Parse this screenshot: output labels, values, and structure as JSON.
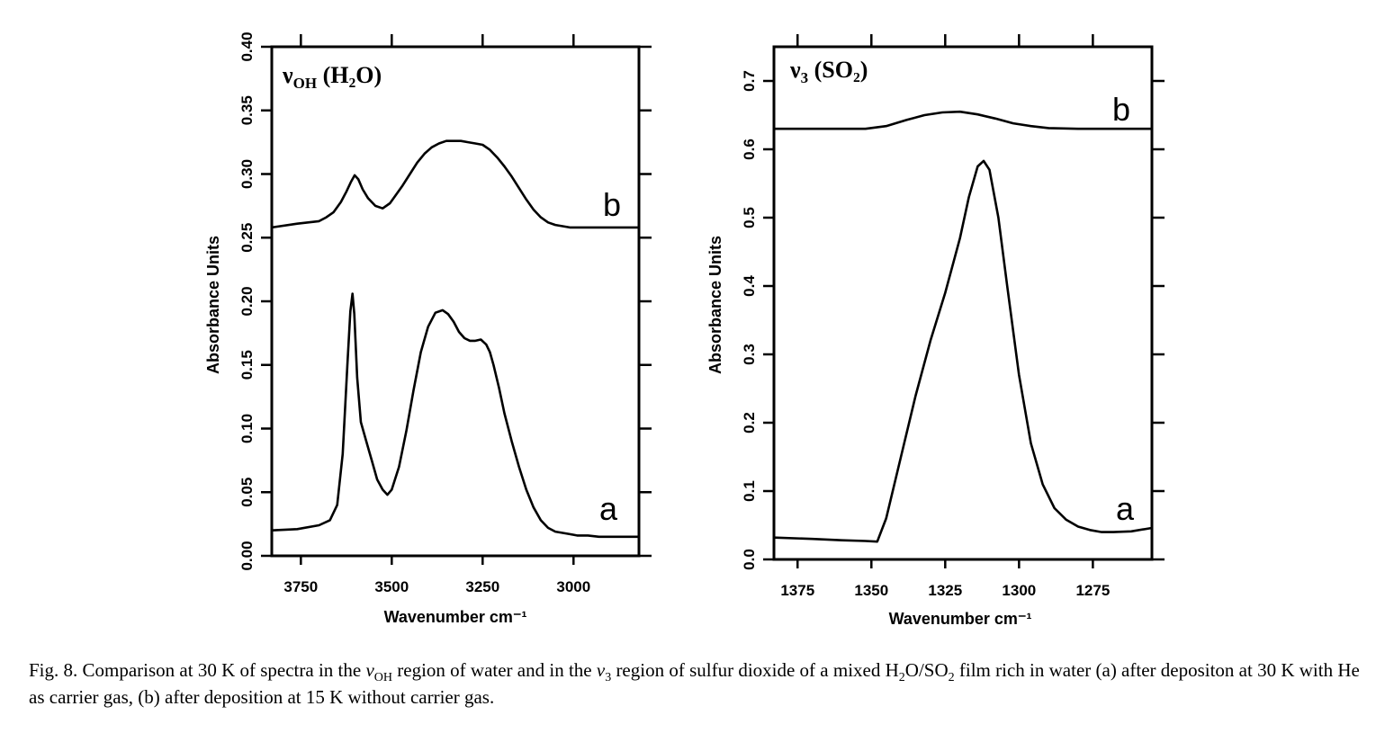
{
  "chart_data": [
    {
      "type": "line",
      "title": "νOH (H2O)",
      "title_main": "ν",
      "title_sub": "OH",
      "title_paren": "(H₂O)",
      "xlabel": "Wavenumber cm⁻¹",
      "ylabel": "Absorbance Units",
      "xlim": [
        3830,
        2820
      ],
      "ylim": [
        0.0,
        0.4
      ],
      "x_ticks": [
        3750,
        3500,
        3250,
        3000
      ],
      "x_tick_labels": [
        "3750",
        "3500",
        "3250",
        "3000"
      ],
      "y_ticks": [
        0.0,
        0.05,
        0.1,
        0.15,
        0.2,
        0.25,
        0.3,
        0.35,
        0.4
      ],
      "y_tick_labels": [
        "0.00",
        "0.05",
        "0.10",
        "0.15",
        "0.20",
        "0.25",
        "0.30",
        "0.35",
        "0.40"
      ],
      "grid": false,
      "series": [
        {
          "name": "a",
          "x": [
            3830,
            3760,
            3700,
            3670,
            3650,
            3635,
            3622,
            3614,
            3608,
            3603,
            3595,
            3585,
            3570,
            3555,
            3540,
            3525,
            3512,
            3500,
            3480,
            3460,
            3440,
            3420,
            3400,
            3380,
            3360,
            3345,
            3330,
            3315,
            3300,
            3285,
            3270,
            3255,
            3240,
            3230,
            3220,
            3205,
            3190,
            3170,
            3150,
            3130,
            3110,
            3090,
            3070,
            3050,
            3030,
            3010,
            2990,
            2960,
            2930,
            2900,
            2870,
            2820
          ],
          "y": [
            0.02,
            0.021,
            0.024,
            0.028,
            0.04,
            0.08,
            0.15,
            0.192,
            0.206,
            0.19,
            0.14,
            0.105,
            0.09,
            0.075,
            0.06,
            0.052,
            0.048,
            0.052,
            0.07,
            0.098,
            0.13,
            0.16,
            0.18,
            0.191,
            0.193,
            0.19,
            0.184,
            0.176,
            0.171,
            0.169,
            0.169,
            0.17,
            0.166,
            0.16,
            0.15,
            0.132,
            0.112,
            0.09,
            0.07,
            0.052,
            0.038,
            0.028,
            0.022,
            0.019,
            0.018,
            0.017,
            0.016,
            0.016,
            0.015,
            0.015,
            0.015,
            0.015
          ]
        },
        {
          "name": "b",
          "x": [
            3830,
            3760,
            3700,
            3680,
            3660,
            3640,
            3625,
            3612,
            3602,
            3592,
            3580,
            3565,
            3545,
            3525,
            3505,
            3490,
            3470,
            3450,
            3430,
            3410,
            3390,
            3370,
            3350,
            3330,
            3310,
            3290,
            3270,
            3250,
            3230,
            3210,
            3190,
            3170,
            3150,
            3130,
            3110,
            3090,
            3070,
            3050,
            3030,
            3010,
            2990,
            2960,
            2920,
            2880,
            2850,
            2820
          ],
          "y": [
            0.258,
            0.261,
            0.263,
            0.266,
            0.27,
            0.278,
            0.286,
            0.294,
            0.299,
            0.296,
            0.288,
            0.281,
            0.275,
            0.273,
            0.277,
            0.283,
            0.291,
            0.3,
            0.309,
            0.316,
            0.321,
            0.324,
            0.326,
            0.326,
            0.326,
            0.325,
            0.324,
            0.323,
            0.319,
            0.313,
            0.306,
            0.298,
            0.289,
            0.28,
            0.272,
            0.266,
            0.262,
            0.26,
            0.259,
            0.258,
            0.258,
            0.258,
            0.258,
            0.258,
            0.258,
            0.258
          ]
        }
      ]
    },
    {
      "type": "line",
      "title": "ν3 (SO2)",
      "title_main": "ν",
      "title_sub": "3",
      "title_paren": "(SO₂)",
      "xlabel": "Wavenumber cm⁻¹",
      "ylabel": "Absorbance Units",
      "xlim": [
        1383,
        1255
      ],
      "ylim": [
        0.0,
        0.75
      ],
      "x_ticks": [
        1375,
        1350,
        1325,
        1300,
        1275
      ],
      "x_tick_labels": [
        "1375",
        "1350",
        "1325",
        "1300",
        "1275"
      ],
      "y_ticks": [
        0.0,
        0.1,
        0.2,
        0.3,
        0.4,
        0.5,
        0.6,
        0.7
      ],
      "y_tick_labels": [
        "0.0",
        "0.1",
        "0.2",
        "0.3",
        "0.4",
        "0.5",
        "0.6",
        "0.7"
      ],
      "grid": false,
      "series": [
        {
          "name": "a",
          "x": [
            1383,
            1370,
            1360,
            1352,
            1348,
            1345,
            1340,
            1335,
            1330,
            1325,
            1320,
            1317,
            1314,
            1312,
            1310,
            1307,
            1304,
            1300,
            1296,
            1292,
            1288,
            1284,
            1280,
            1276,
            1272,
            1268,
            1262,
            1255
          ],
          "y": [
            0.032,
            0.03,
            0.028,
            0.027,
            0.026,
            0.06,
            0.15,
            0.24,
            0.32,
            0.39,
            0.47,
            0.53,
            0.575,
            0.583,
            0.57,
            0.5,
            0.4,
            0.27,
            0.17,
            0.11,
            0.075,
            0.058,
            0.048,
            0.043,
            0.04,
            0.04,
            0.041,
            0.046
          ]
        },
        {
          "name": "b",
          "x": [
            1383,
            1370,
            1360,
            1352,
            1345,
            1338,
            1332,
            1326,
            1320,
            1314,
            1308,
            1302,
            1296,
            1290,
            1280,
            1270,
            1262,
            1255
          ],
          "y": [
            0.63,
            0.63,
            0.63,
            0.63,
            0.634,
            0.643,
            0.65,
            0.654,
            0.655,
            0.651,
            0.645,
            0.638,
            0.634,
            0.631,
            0.63,
            0.63,
            0.63,
            0.63
          ]
        }
      ]
    }
  ],
  "caption": {
    "fig_label": "Fig. 8.",
    "part1": " Comparison at 30 K of spectra in the ",
    "nu1": "ν",
    "nu1_sub": "OH",
    "part2": " region of water and in the ",
    "nu2": "ν",
    "nu2_sub": "3",
    "part3": " region of sulfur dioxide of a mixed H",
    "h2o_sub": "2",
    "part4": "O/SO",
    "so2_sub": "2",
    "part5": " film rich in water (a) after depositon at 30 K with He as carrier gas, (b) after deposition at 15 K without carrier gas."
  }
}
